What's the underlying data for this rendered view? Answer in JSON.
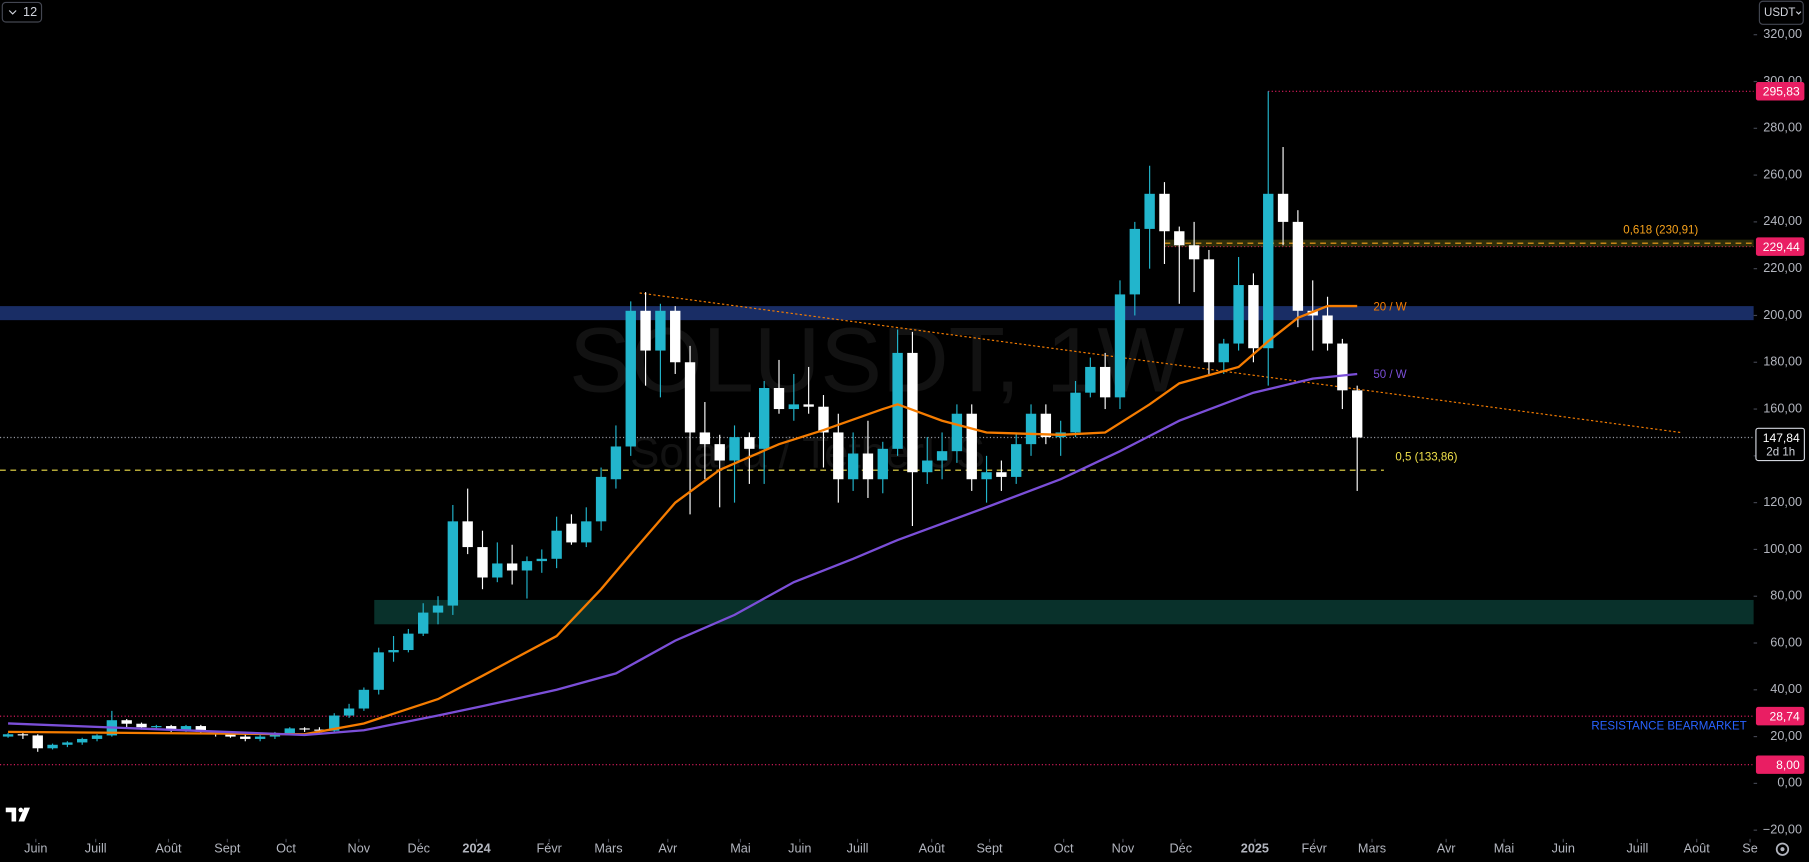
{
  "toolbar": {
    "interval": "12",
    "currency": "USDT"
  },
  "chart_data": {
    "type": "candlestick",
    "title": "SOLUSDT, 1W",
    "subtitle": "Solana / TetherUS",
    "up_color": "#22b5cc",
    "down_color": "#ffffff",
    "ohlc": [
      [
        20,
        21.5,
        19.5,
        21
      ],
      [
        21,
        22,
        19,
        20.5
      ],
      [
        20.5,
        21,
        13.5,
        15
      ],
      [
        15,
        17,
        14.5,
        16.5
      ],
      [
        16.5,
        18,
        15.5,
        17.5
      ],
      [
        17.5,
        19.5,
        16.5,
        19
      ],
      [
        19,
        21,
        18,
        20.5
      ],
      [
        20.5,
        31,
        20,
        27
      ],
      [
        27,
        27.5,
        24,
        25.5
      ],
      [
        25.5,
        26,
        23,
        24
      ],
      [
        24,
        25,
        23,
        24.5
      ],
      [
        24.5,
        25,
        22,
        23
      ],
      [
        23,
        25,
        22,
        24.5
      ],
      [
        24.5,
        25,
        21,
        22
      ],
      [
        22,
        22.5,
        20,
        21
      ],
      [
        21,
        22,
        19.5,
        20
      ],
      [
        20,
        21,
        18,
        19
      ],
      [
        19,
        21,
        18,
        20
      ],
      [
        20,
        22,
        19,
        21.5
      ],
      [
        21.5,
        24,
        21,
        23.5
      ],
      [
        23.5,
        24,
        22,
        23
      ],
      [
        23,
        24,
        21.5,
        22.5
      ],
      [
        22.5,
        30,
        22,
        29
      ],
      [
        29,
        34,
        28,
        32
      ],
      [
        32,
        41,
        31,
        40
      ],
      [
        40,
        58,
        38,
        56
      ],
      [
        56,
        63,
        52,
        57
      ],
      [
        57,
        66,
        56,
        64
      ],
      [
        64,
        77,
        63,
        73
      ],
      [
        73,
        80,
        68,
        76
      ],
      [
        76,
        119,
        72,
        112
      ],
      [
        112,
        126,
        98,
        101
      ],
      [
        101,
        108,
        83,
        88
      ],
      [
        88,
        103,
        86,
        94
      ],
      [
        94,
        102,
        85,
        91
      ],
      [
        91,
        97,
        79,
        95
      ],
      [
        95,
        100,
        90,
        96
      ],
      [
        96,
        114,
        92,
        108
      ],
      [
        111,
        115,
        102,
        103
      ],
      [
        103,
        118,
        101,
        112
      ],
      [
        112,
        135,
        108,
        131
      ],
      [
        130,
        153,
        126,
        144
      ],
      [
        144,
        206,
        140,
        202
      ],
      [
        202,
        210,
        170,
        185
      ],
      [
        185,
        205,
        165,
        202
      ],
      [
        202,
        204,
        175,
        180
      ],
      [
        180,
        187,
        115,
        150
      ],
      [
        150,
        163,
        130,
        145
      ],
      [
        145,
        149,
        118,
        138
      ],
      [
        138,
        153,
        120,
        148
      ],
      [
        148,
        150,
        128,
        143
      ],
      [
        143,
        172,
        128,
        169
      ],
      [
        169,
        181,
        158,
        160
      ],
      [
        160,
        175,
        155,
        162
      ],
      [
        162,
        178,
        158,
        161
      ],
      [
        161,
        166,
        135,
        150
      ],
      [
        150,
        158,
        120,
        130
      ],
      [
        130,
        150,
        125,
        141
      ],
      [
        141,
        155,
        122,
        130
      ],
      [
        130,
        146,
        124,
        143
      ],
      [
        143,
        194,
        140,
        184
      ],
      [
        184,
        193,
        110,
        133
      ],
      [
        133,
        148,
        128,
        138
      ],
      [
        138,
        150,
        130,
        142
      ],
      [
        142,
        162,
        137,
        158
      ],
      [
        158,
        162,
        125,
        130
      ],
      [
        130,
        140,
        120,
        133
      ],
      [
        133,
        138,
        125,
        131
      ],
      [
        131,
        150,
        128,
        145
      ],
      [
        145,
        162,
        140,
        158
      ],
      [
        158,
        162,
        145,
        148
      ],
      [
        148,
        155,
        140,
        150
      ],
      [
        150,
        172,
        148,
        167
      ],
      [
        167,
        182,
        165,
        178
      ],
      [
        178,
        184,
        160,
        165
      ],
      [
        165,
        215,
        160,
        209
      ],
      [
        209,
        240,
        200,
        237
      ],
      [
        237,
        264,
        220,
        252
      ],
      [
        252,
        257,
        222,
        236
      ],
      [
        236,
        238,
        205,
        230
      ],
      [
        230,
        240,
        210,
        224
      ],
      [
        224,
        228,
        175,
        180
      ],
      [
        180,
        190,
        175,
        188
      ],
      [
        188,
        225,
        185,
        213
      ],
      [
        213,
        218,
        180,
        186
      ],
      [
        186,
        295.83,
        170,
        252
      ],
      [
        252,
        272,
        230,
        240
      ],
      [
        240,
        245,
        195,
        202
      ],
      [
        202,
        215,
        185,
        200
      ],
      [
        200,
        208,
        185,
        188
      ],
      [
        188,
        190,
        160,
        168
      ],
      [
        168,
        170,
        125,
        147.84
      ]
    ],
    "series": [
      {
        "name": "20 / W",
        "color": "#f57c00",
        "x": [
          0,
          20,
          24,
          29,
          32,
          37,
          40,
          42,
          45,
          48,
          52,
          55,
          59,
          60,
          63,
          66,
          71,
          74,
          77,
          79,
          83,
          85,
          87,
          89,
          91
        ],
        "values": [
          22,
          21,
          25.6,
          36,
          46,
          63,
          83,
          98,
          120,
          134,
          145,
          151,
          160,
          162,
          155,
          150,
          149,
          150,
          162,
          171,
          178,
          189,
          199,
          204,
          204
        ]
      },
      {
        "name": "50 / W",
        "color": "#7b4fd8",
        "x": [
          0,
          20,
          24,
          29,
          32,
          37,
          41,
          45,
          49,
          53,
          57,
          60,
          66,
          71,
          75,
          79,
          84,
          88,
          91
        ],
        "values": [
          25.6,
          20.7,
          22.7,
          29,
          33,
          40,
          47,
          61,
          72,
          86,
          96,
          104,
          118,
          130,
          142,
          155,
          167,
          173,
          175
        ]
      }
    ],
    "xlim": [
      -0.545,
      117.74
    ],
    "ylim": [
      -23.7,
      334.8
    ],
    "xticks": [
      {
        "value": 1.87,
        "label": "Juin"
      },
      {
        "value": 5.91,
        "label": "Juill"
      },
      {
        "value": 10.82,
        "label": "Août"
      },
      {
        "value": 14.79,
        "label": "Sept"
      },
      {
        "value": 18.75,
        "label": "Oct"
      },
      {
        "value": 23.66,
        "label": "Nov"
      },
      {
        "value": 27.7,
        "label": "Déc"
      },
      {
        "value": 31.6,
        "label": "2024"
      },
      {
        "value": 36.5,
        "label": "Févr"
      },
      {
        "value": 40.5,
        "label": "Mars"
      },
      {
        "value": 44.5,
        "label": "Avr"
      },
      {
        "value": 49.4,
        "label": "Mai"
      },
      {
        "value": 53.4,
        "label": "Juin"
      },
      {
        "value": 57.3,
        "label": "Juill"
      },
      {
        "value": 62.3,
        "label": "Août"
      },
      {
        "value": 66.2,
        "label": "Sept"
      },
      {
        "value": 71.2,
        "label": "Oct"
      },
      {
        "value": 75.2,
        "label": "Nov"
      },
      {
        "value": 79.1,
        "label": "Déc"
      },
      {
        "value": 84.1,
        "label": "2025"
      },
      {
        "value": 88.1,
        "label": "Févr"
      },
      {
        "value": 92.0,
        "label": "Mars"
      },
      {
        "value": 97.0,
        "label": "Avr"
      },
      {
        "value": 100.9,
        "label": "Mai"
      },
      {
        "value": 104.9,
        "label": "Juin"
      },
      {
        "value": 109.9,
        "label": "Juill"
      },
      {
        "value": 113.9,
        "label": "Août"
      },
      {
        "value": 117.5,
        "label": "Se"
      }
    ],
    "yticks": [
      {
        "value": 320,
        "label": "320,00"
      },
      {
        "value": 300,
        "label": "300,00"
      },
      {
        "value": 280,
        "label": "280,00"
      },
      {
        "value": 260,
        "label": "260,00"
      },
      {
        "value": 240,
        "label": "240,00"
      },
      {
        "value": 220,
        "label": "220,00"
      },
      {
        "value": 200,
        "label": "200,00"
      },
      {
        "value": 180,
        "label": "180,00"
      },
      {
        "value": 160,
        "label": "160,00"
      },
      {
        "value": 140,
        "label": "140,00"
      },
      {
        "value": 120,
        "label": "120,00"
      },
      {
        "value": 100,
        "label": "100,00"
      },
      {
        "value": 80,
        "label": "80,00"
      },
      {
        "value": 60,
        "label": "60,00"
      },
      {
        "value": 40,
        "label": "40,00"
      },
      {
        "value": 20,
        "label": "20,00"
      },
      {
        "value": 0,
        "label": "0,00"
      },
      {
        "value": -20,
        "label": "−20,00"
      }
    ],
    "zones": [
      {
        "x_start": -0.545,
        "ylim": [
          198,
          204
        ],
        "color": "#1d3577"
      },
      {
        "x_start": 24.7,
        "ylim": [
          68,
          78.4
        ],
        "color": "#0b3a33"
      }
    ],
    "levels": [
      {
        "value": 295.83,
        "label": "295,83",
        "x_start": 85,
        "color": "#e91e63"
      },
      {
        "value": 229.44,
        "label": "229,44",
        "x_start": 78,
        "color": "#e91e63"
      },
      {
        "value": 28.74,
        "label": "28,74",
        "x_start": -0.545,
        "color": "#e91e63",
        "note": "RESISTANCE BEARMARKET"
      },
      {
        "value": 8,
        "label": "8,00",
        "x_start": -0.545,
        "color": "#e91e63"
      }
    ],
    "fib_levels": [
      {
        "value": 230.91,
        "label": "0,618 (230,91)",
        "x": [
          78,
          117.74
        ],
        "color": "#f7a21b"
      },
      {
        "value": 133.86,
        "label": "0,5 (133,86)",
        "x": [
          -0.545,
          92.8
        ],
        "color": "#f0e04a"
      }
    ],
    "trendline": {
      "x": [
        42.6,
        112.8
      ],
      "values": [
        209.6,
        150
      ],
      "color": "#f57c00"
    },
    "last_price": {
      "value": 147.84,
      "label": "147,84",
      "countdown": "2d 1h"
    }
  }
}
